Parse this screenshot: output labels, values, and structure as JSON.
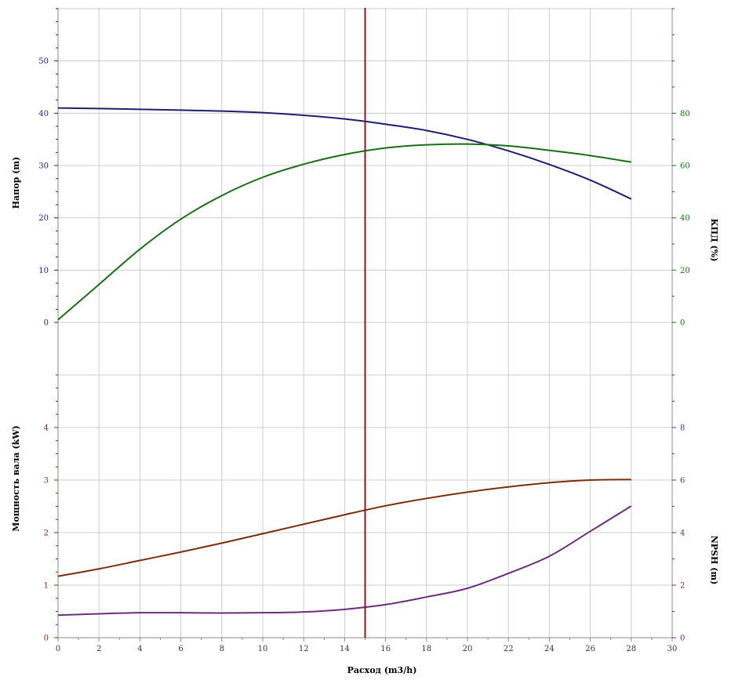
{
  "chart_data": {
    "type": "line",
    "xlabel": "Расход (m3/h)",
    "xlim": [
      0,
      30
    ],
    "x_ticks": [
      "0",
      "2",
      "4",
      "6",
      "8",
      "10",
      "12",
      "14",
      "16",
      "18",
      "20",
      "22",
      "24",
      "26",
      "28",
      "30"
    ],
    "grid": true,
    "marker_x": 15,
    "colors": {
      "head": "#1f1f6e",
      "efficiency": "#1a6e1a",
      "power": "#7a2e0e",
      "npsh": "#6a2e7a",
      "marker": "#8b1a1a",
      "grid": "#cccccc",
      "axis": "#888888"
    },
    "top_panel": {
      "left_axis": {
        "label": "Напор (m)",
        "ylim": [
          0,
          60
        ],
        "ticks": [
          "0",
          "10",
          "20",
          "30",
          "40",
          "50"
        ]
      },
      "right_axis": {
        "label": "КПД (%)",
        "ylim": [
          0,
          120
        ],
        "ticks": [
          "0",
          "20",
          "40",
          "60",
          "80"
        ]
      },
      "series": [
        {
          "key": "head",
          "axis": "left",
          "x": [
            0,
            2,
            4,
            6,
            8,
            10,
            12,
            14,
            16,
            18,
            20,
            22,
            24,
            26,
            28
          ],
          "y": [
            41.0,
            40.9,
            40.75,
            40.6,
            40.4,
            40.1,
            39.6,
            38.9,
            37.9,
            36.7,
            35.0,
            32.8,
            30.2,
            27.2,
            23.6
          ]
        },
        {
          "key": "efficiency",
          "axis": "right",
          "x": [
            0,
            2,
            4,
            6,
            8,
            10,
            12,
            14,
            16,
            18,
            20,
            22,
            24,
            26,
            28
          ],
          "y": [
            1,
            14.5,
            28.0,
            39.5,
            48.5,
            55.5,
            60.5,
            64.2,
            66.7,
            67.9,
            68.2,
            67.5,
            65.8,
            63.8,
            61.3
          ]
        }
      ]
    },
    "bottom_panel": {
      "left_axis": {
        "label": "Мощность вала (kW)",
        "ylim": [
          0,
          5
        ],
        "ticks": [
          "0",
          "1",
          "2",
          "3",
          "4"
        ]
      },
      "right_axis": {
        "label": "NPSH (m)",
        "ylim": [
          0,
          10
        ],
        "ticks": [
          "0",
          "2",
          "4",
          "6",
          "8"
        ]
      },
      "series": [
        {
          "key": "power",
          "axis": "left",
          "x": [
            0,
            2,
            4,
            6,
            8,
            10,
            12,
            14,
            16,
            18,
            20,
            22,
            24,
            26,
            28
          ],
          "y": [
            1.17,
            1.31,
            1.47,
            1.63,
            1.8,
            1.98,
            2.16,
            2.34,
            2.51,
            2.65,
            2.77,
            2.87,
            2.95,
            3.0,
            3.01
          ]
        },
        {
          "key": "npsh",
          "axis": "right",
          "x": [
            0,
            2,
            4,
            6,
            8,
            10,
            12,
            14,
            16,
            18,
            20,
            22,
            24,
            26,
            28
          ],
          "y": [
            0.86,
            0.91,
            0.95,
            0.95,
            0.94,
            0.95,
            0.98,
            1.08,
            1.26,
            1.55,
            1.88,
            2.45,
            3.1,
            4.05,
            5.01
          ]
        }
      ]
    }
  }
}
